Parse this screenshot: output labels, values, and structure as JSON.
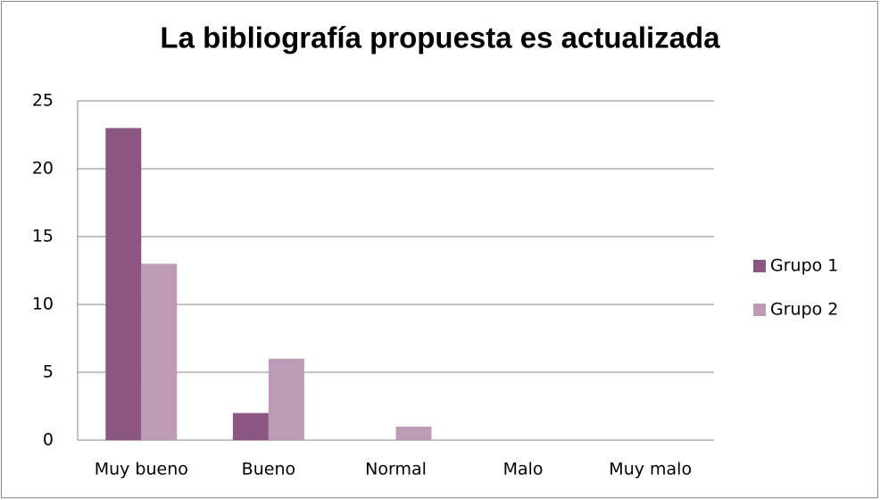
{
  "chart_data": {
    "type": "bar",
    "title": "La bibliografía propuesta es actualizada",
    "categories": [
      "Muy bueno",
      "Bueno",
      "Normal",
      "Malo",
      "Muy malo"
    ],
    "series": [
      {
        "name": "Grupo 1",
        "color": "#8b5681",
        "values": [
          23,
          2,
          0,
          0,
          0
        ]
      },
      {
        "name": "Grupo 2",
        "color": "#bd9bb7",
        "values": [
          13,
          6,
          1,
          0,
          0
        ]
      }
    ],
    "ylim": [
      0,
      25
    ],
    "yticks": [
      0,
      5,
      10,
      15,
      20,
      25
    ],
    "grid": true,
    "legend": "right"
  }
}
